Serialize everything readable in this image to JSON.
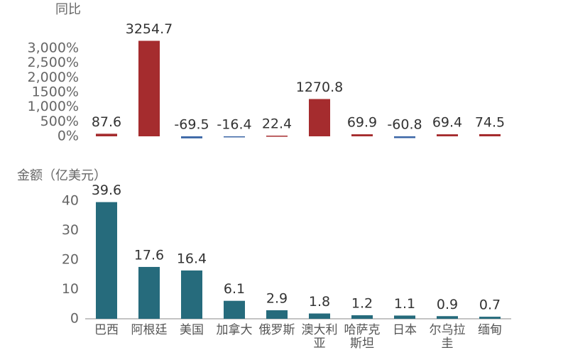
{
  "chart_data": [
    {
      "type": "bar",
      "title": "同比",
      "categories": [
        "巴西",
        "阿根廷",
        "美国",
        "加拿大",
        "俄罗斯",
        "澳大利亚",
        "哈萨克斯坦",
        "日本",
        "尔乌拉圭",
        "缅甸"
      ],
      "values": [
        87.6,
        3254.7,
        -69.5,
        -16.4,
        22.4,
        1270.8,
        69.9,
        -60.8,
        69.4,
        74.5
      ],
      "color": "#a52c2e",
      "negative_color": "#3b66a6",
      "ylim": [
        -100,
        3300
      ],
      "yticks": [
        {
          "value": 0,
          "label": "0%"
        },
        {
          "value": 500,
          "label": "500%"
        },
        {
          "value": 1000,
          "label": "1,000%"
        },
        {
          "value": 1500,
          "label": "1500%"
        },
        {
          "value": 2000,
          "label": "2,000%"
        },
        {
          "value": 2500,
          "label": "2,500%"
        },
        {
          "value": 3000,
          "label": "3,000%"
        }
      ]
    },
    {
      "type": "bar",
      "title": "金额（亿美元）",
      "categories": [
        "巴西",
        "阿根廷",
        "美国",
        "加拿大",
        "俄罗斯",
        "澳大利亚",
        "哈萨克斯坦",
        "日本",
        "尔乌拉圭",
        "缅甸"
      ],
      "values": [
        39.6,
        17.6,
        16.4,
        6.1,
        2.9,
        1.8,
        1.2,
        1.1,
        0.9,
        0.7
      ],
      "color": "#266b7c",
      "ylim": [
        0,
        42
      ],
      "yticks": [
        0,
        10,
        20,
        30,
        40
      ],
      "axis_line": true
    }
  ]
}
